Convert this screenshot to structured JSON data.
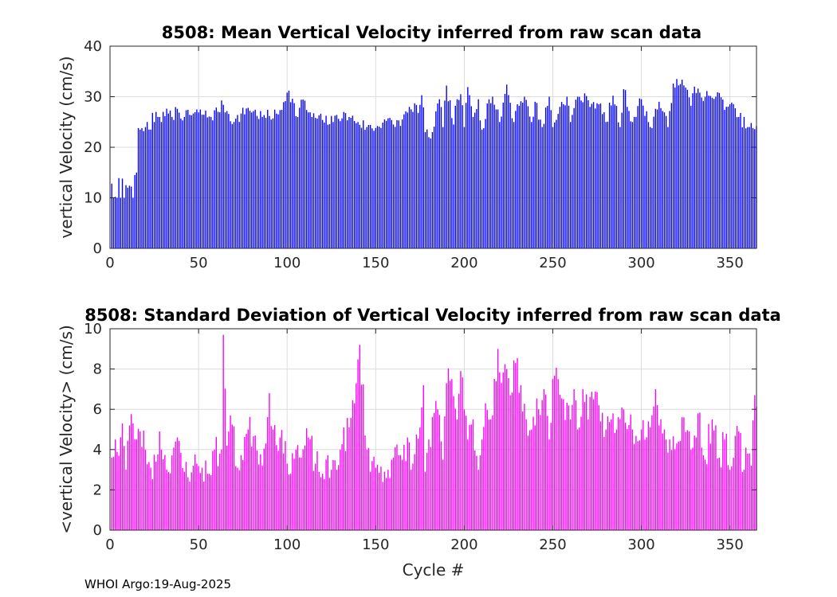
{
  "chart_data": [
    {
      "type": "bar",
      "title": "8508: Mean Vertical Velocity inferred from raw scan data",
      "xlabel": "",
      "ylabel": "vertical Velocity (cm/s)",
      "xlim": [
        0,
        365
      ],
      "ylim": [
        0,
        40
      ],
      "xticks": [
        0,
        50,
        100,
        150,
        200,
        250,
        300,
        350
      ],
      "yticks": [
        0,
        10,
        20,
        30,
        40
      ],
      "grid": true,
      "color": "#0000ff",
      "keypoints": [
        [
          1,
          12.8
        ],
        [
          2,
          10
        ],
        [
          3,
          10.2
        ],
        [
          4,
          10
        ],
        [
          5,
          13.9
        ],
        [
          6,
          10
        ],
        [
          7,
          13.8
        ],
        [
          8,
          10
        ],
        [
          9,
          12.5
        ],
        [
          10,
          12
        ],
        [
          11,
          12.4
        ],
        [
          12,
          12.2
        ],
        [
          13,
          10
        ],
        [
          14,
          14.5
        ],
        [
          15,
          15
        ],
        [
          16,
          23.8
        ],
        [
          17,
          23.5
        ],
        [
          18,
          23.8
        ],
        [
          19,
          23.2
        ],
        [
          20,
          24
        ],
        [
          21,
          25
        ],
        [
          22,
          23.5
        ],
        [
          23,
          23.5
        ],
        [
          24,
          26.8
        ],
        [
          25,
          25
        ],
        [
          26,
          27
        ],
        [
          27,
          26
        ],
        [
          28,
          26
        ],
        [
          29,
          25
        ],
        [
          30,
          27
        ],
        [
          35,
          26
        ],
        [
          38,
          27.6
        ],
        [
          42,
          26
        ],
        [
          50,
          26.9
        ],
        [
          57,
          26
        ],
        [
          64,
          28.4
        ],
        [
          70,
          25
        ],
        [
          78,
          27.8
        ],
        [
          86,
          26
        ],
        [
          95,
          26.5
        ],
        [
          100,
          30.8
        ],
        [
          101,
          31.2
        ],
        [
          106,
          26
        ],
        [
          108,
          29.4
        ],
        [
          114,
          26
        ],
        [
          120,
          25.4
        ],
        [
          126,
          25
        ],
        [
          128,
          26.4
        ],
        [
          135,
          26
        ],
        [
          140,
          25
        ],
        [
          145,
          24
        ],
        [
          150,
          23.8
        ],
        [
          155,
          25.5
        ],
        [
          160,
          24.5
        ],
        [
          165,
          25.5
        ],
        [
          170,
          27.5
        ],
        [
          172,
          28.7
        ],
        [
          174,
          26.8
        ],
        [
          176,
          30.3
        ],
        [
          178,
          23
        ],
        [
          180,
          22
        ],
        [
          182,
          23
        ],
        [
          186,
          29.5
        ],
        [
          188,
          24
        ],
        [
          190,
          32.2
        ],
        [
          194,
          24.5
        ],
        [
          196,
          29.5
        ],
        [
          198,
          30.5
        ],
        [
          200,
          24
        ],
        [
          202,
          31.9
        ],
        [
          205,
          26
        ],
        [
          208,
          29.5
        ],
        [
          210,
          23.5
        ],
        [
          214,
          29.5
        ],
        [
          216,
          30
        ],
        [
          220,
          25
        ],
        [
          224,
          32.4
        ],
        [
          228,
          25
        ],
        [
          230,
          28.5
        ],
        [
          234,
          30
        ],
        [
          238,
          25
        ],
        [
          240,
          29
        ],
        [
          244,
          24
        ],
        [
          248,
          30
        ],
        [
          250,
          24
        ],
        [
          254,
          28
        ],
        [
          258,
          30
        ],
        [
          260,
          25
        ],
        [
          264,
          30
        ],
        [
          270,
          29.3
        ],
        [
          276,
          28.5
        ],
        [
          280,
          25
        ],
        [
          284,
          30.2
        ],
        [
          288,
          24
        ],
        [
          290,
          31.5
        ],
        [
          295,
          25
        ],
        [
          300,
          29.5
        ],
        [
          305,
          24
        ],
        [
          310,
          29
        ],
        [
          315,
          24
        ],
        [
          318,
          32.6
        ],
        [
          320,
          33.5
        ],
        [
          322,
          32.5
        ],
        [
          325,
          31.8
        ],
        [
          328,
          28.2
        ],
        [
          330,
          32
        ],
        [
          333,
          30.8
        ],
        [
          336,
          30
        ],
        [
          338,
          30.2
        ],
        [
          340,
          29.8
        ],
        [
          342,
          30
        ],
        [
          345,
          29.9
        ],
        [
          348,
          28
        ],
        [
          350,
          28.5
        ],
        [
          355,
          26
        ],
        [
          360,
          24
        ],
        [
          363,
          23.8
        ]
      ],
      "n": 365,
      "seed": 7,
      "jitter": 2.5,
      "floor": 9.5
    },
    {
      "type": "bar",
      "title": "8508: Standard Deviation of Vertical Velocity inferred from raw scan data",
      "xlabel": "Cycle #",
      "ylabel": "<vertical Velocity> (cm/s)",
      "xlim": [
        0,
        365
      ],
      "ylim": [
        0,
        10
      ],
      "xticks": [
        0,
        50,
        100,
        150,
        200,
        250,
        300,
        350
      ],
      "yticks": [
        0,
        2,
        4,
        6,
        8,
        10
      ],
      "grid": true,
      "color": "#ff00ff",
      "keypoints": [
        [
          1,
          3.6
        ],
        [
          3,
          4.5
        ],
        [
          5,
          3.7
        ],
        [
          7,
          5.3
        ],
        [
          9,
          3
        ],
        [
          11,
          5.2
        ],
        [
          13,
          5.3
        ],
        [
          15,
          4.5
        ],
        [
          17,
          4.9
        ],
        [
          20,
          4
        ],
        [
          23,
          3.1
        ],
        [
          26,
          3.4
        ],
        [
          28,
          4.9
        ],
        [
          32,
          3
        ],
        [
          37,
          4.4
        ],
        [
          42,
          2.9
        ],
        [
          47,
          3.2
        ],
        [
          52,
          3.1
        ],
        [
          55,
          2.8
        ],
        [
          59,
          4
        ],
        [
          62,
          3.8
        ],
        [
          63,
          4
        ],
        [
          64,
          9.7
        ],
        [
          66,
          4.2
        ],
        [
          68,
          5.7
        ],
        [
          72,
          3.1
        ],
        [
          78,
          5
        ],
        [
          82,
          4.7
        ],
        [
          86,
          3.2
        ],
        [
          90,
          6.8
        ],
        [
          92,
          5
        ],
        [
          96,
          4.6
        ],
        [
          100,
          3.3
        ],
        [
          105,
          4
        ],
        [
          108,
          3.6
        ],
        [
          112,
          4.6
        ],
        [
          116,
          3.3
        ],
        [
          120,
          2.8
        ],
        [
          125,
          3
        ],
        [
          130,
          4
        ],
        [
          135,
          5.1
        ],
        [
          138,
          6.3
        ],
        [
          141,
          9.2
        ],
        [
          145,
          4
        ],
        [
          150,
          3.1
        ],
        [
          155,
          2.9
        ],
        [
          160,
          3.6
        ],
        [
          165,
          3.5
        ],
        [
          168,
          4.6
        ],
        [
          170,
          3
        ],
        [
          175,
          5.1
        ],
        [
          177,
          7.2
        ],
        [
          178,
          2.9
        ],
        [
          180,
          4.5
        ],
        [
          185,
          6
        ],
        [
          188,
          3.5
        ],
        [
          190,
          7.3
        ],
        [
          193,
          7.5
        ],
        [
          196,
          5.5
        ],
        [
          198,
          7.9
        ],
        [
          200,
          6
        ],
        [
          202,
          4.5
        ],
        [
          205,
          5.5
        ],
        [
          208,
          3
        ],
        [
          210,
          4.5
        ],
        [
          212,
          6.3
        ],
        [
          215,
          5.5
        ],
        [
          219,
          9
        ],
        [
          221,
          7.3
        ],
        [
          224,
          8
        ],
        [
          226,
          6.7
        ],
        [
          229,
          8.3
        ],
        [
          232,
          7.2
        ],
        [
          235,
          5.5
        ],
        [
          238,
          5
        ],
        [
          242,
          6
        ],
        [
          245,
          7
        ],
        [
          248,
          4.5
        ],
        [
          250,
          7.5
        ],
        [
          253,
          7.5
        ],
        [
          256,
          6.5
        ],
        [
          260,
          5.5
        ],
        [
          262,
          7
        ],
        [
          264,
          5
        ],
        [
          267,
          7
        ],
        [
          270,
          5.5
        ],
        [
          273,
          6.5
        ],
        [
          276,
          6.2
        ],
        [
          280,
          5
        ],
        [
          283,
          5.5
        ],
        [
          286,
          5
        ],
        [
          290,
          6
        ],
        [
          295,
          5
        ],
        [
          300,
          5
        ],
        [
          304,
          5.4
        ],
        [
          308,
          7
        ],
        [
          312,
          4.8
        ],
        [
          316,
          4.5
        ],
        [
          320,
          4.3
        ],
        [
          324,
          5.6
        ],
        [
          328,
          4
        ],
        [
          332,
          5.8
        ],
        [
          336,
          3.5
        ],
        [
          340,
          5.5
        ],
        [
          344,
          3.6
        ],
        [
          347,
          4.5
        ],
        [
          350,
          3
        ],
        [
          352,
          3.6
        ],
        [
          355,
          4.9
        ],
        [
          358,
          3
        ],
        [
          360,
          3.8
        ],
        [
          362,
          3.2
        ],
        [
          364,
          6.7
        ]
      ],
      "n": 365,
      "seed": 23,
      "jitter": 1.6,
      "floor": 2.2
    }
  ],
  "footer": "WHOI Argo:19-Aug-2025"
}
